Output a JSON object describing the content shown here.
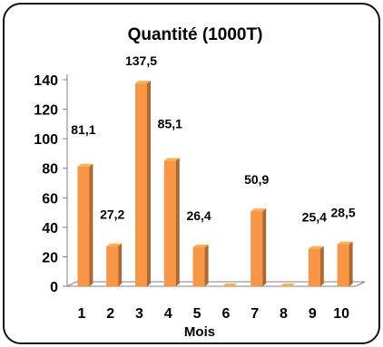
{
  "chart_data": {
    "type": "bar",
    "title": "Quantité (1000T)",
    "xlabel": "Mois",
    "ylabel": "",
    "categories": [
      "1",
      "2",
      "3",
      "4",
      "5",
      "6",
      "7",
      "8",
      "9",
      "10"
    ],
    "values": [
      81.1,
      27.2,
      137.5,
      85.1,
      26.4,
      0,
      50.9,
      0,
      25.4,
      28.5
    ],
    "data_labels": [
      "81,1",
      "27,2",
      "137,5",
      "85,1",
      "26,4",
      "",
      "50,9",
      "",
      "25,4",
      "28,5"
    ],
    "yticks": [
      "0",
      "20",
      "40",
      "60",
      "80",
      "100",
      "120",
      "140"
    ],
    "ylim": [
      0,
      140
    ],
    "bar_color": "#f79646",
    "grid": false,
    "legend": "none",
    "style": "3d-column"
  }
}
